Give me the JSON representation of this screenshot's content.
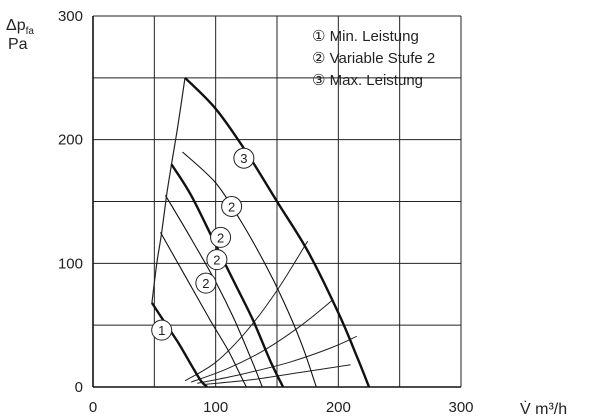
{
  "chart_data": {
    "type": "line",
    "ylabel_top": "Δp",
    "ylabel_sub": "fa",
    "ylabel_unit": "Pa",
    "xlabel": "V̇ m³/h",
    "xlim": [
      0,
      300
    ],
    "ylim": [
      0,
      300
    ],
    "x_ticks": [
      0,
      100,
      200,
      300
    ],
    "y_ticks": [
      0,
      100,
      200,
      300
    ],
    "x_tick_labels": [
      "0",
      "100",
      "200",
      "300"
    ],
    "y_tick_labels": [
      "0",
      "100",
      "200",
      "300"
    ],
    "grid": true,
    "legend": {
      "placement": "top-right",
      "entries": [
        "① Min. Leistung",
        "② Variable Stufe 2",
        "③ Max. Leistung"
      ]
    },
    "series": [
      {
        "label": "3",
        "bold": true,
        "x": [
          75,
          100,
          125,
          150,
          175,
          200,
          215,
          225
        ],
        "y": [
          250,
          225,
          190,
          150,
          110,
          60,
          25,
          0
        ],
        "label_at": [
          123,
          185
        ]
      },
      {
        "label": "2",
        "bold": false,
        "x": [
          73,
          100,
          120,
          140,
          155,
          170,
          182
        ],
        "y": [
          190,
          165,
          135,
          100,
          70,
          35,
          0
        ],
        "label_at": [
          113,
          146
        ]
      },
      {
        "label": "2",
        "bold": true,
        "x": [
          64,
          80,
          100,
          115,
          130,
          145,
          155
        ],
        "y": [
          180,
          155,
          115,
          85,
          55,
          20,
          0
        ],
        "label_at": [
          104,
          121
        ]
      },
      {
        "label": "2",
        "bold": false,
        "x": [
          59,
          80,
          100,
          115,
          130,
          138
        ],
        "y": [
          155,
          120,
          85,
          55,
          20,
          0
        ],
        "label_at": [
          101,
          103
        ]
      },
      {
        "label": "2",
        "bold": false,
        "x": [
          55,
          75,
          95,
          110,
          120,
          125
        ],
        "y": [
          125,
          90,
          55,
          30,
          10,
          0
        ],
        "label_at": [
          92,
          84
        ]
      },
      {
        "label": "1",
        "bold": true,
        "x": [
          48,
          60,
          70,
          80,
          88,
          93
        ],
        "y": [
          68,
          50,
          35,
          18,
          5,
          0
        ],
        "label_at": [
          56,
          46
        ]
      }
    ],
    "system_curves": [
      {
        "x": [
          75,
          100,
          125,
          150,
          175
        ],
        "y": [
          5,
          20,
          45,
          78,
          118
        ]
      },
      {
        "x": [
          80,
          110,
          140,
          170,
          195
        ],
        "y": [
          4,
          15,
          30,
          50,
          70
        ]
      },
      {
        "x": [
          85,
          120,
          160,
          195,
          215
        ],
        "y": [
          3,
          10,
          20,
          32,
          41
        ]
      },
      {
        "x": [
          90,
          130,
          170,
          210
        ],
        "y": [
          2,
          6,
          12,
          18
        ]
      }
    ],
    "envelope": {
      "x": [
        48,
        52,
        56,
        60,
        64,
        69,
        75
      ],
      "y": [
        68,
        100,
        125,
        155,
        180,
        210,
        250
      ]
    }
  }
}
